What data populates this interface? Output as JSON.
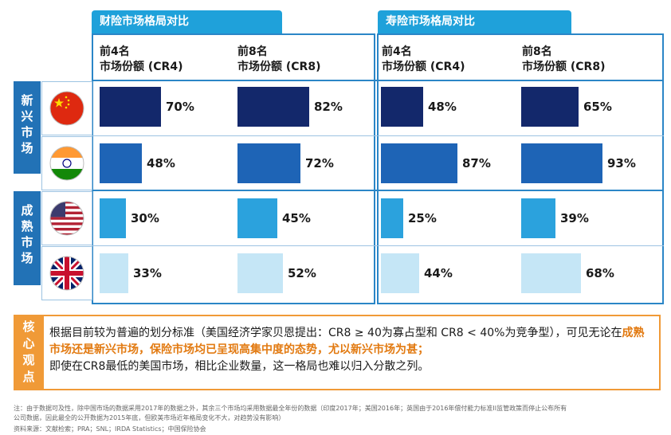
{
  "panels": [
    {
      "title": "财险市场格局对比",
      "cols": [
        "前4名\n市场份额 (CR4)",
        "前8名\n市场份额 (CR8)"
      ]
    },
    {
      "title": "寿险市场格局对比",
      "cols": [
        "前4名\n市场份额 (CR4)",
        "前8名\n市场份额 (CR8)"
      ]
    }
  ],
  "groups": [
    {
      "label": "新兴市场"
    },
    {
      "label": "成熟市场"
    }
  ],
  "flags": [
    "china-flag",
    "india-flag",
    "usa-flag",
    "uk-flag"
  ],
  "colors": {
    "row1": "#13286b",
    "row2": "#1e64b6",
    "row3": "#2ba2dd",
    "row4": "#c5e6f6",
    "accent": "#1fa1da",
    "note": "#f09a37",
    "highlight": "#e27a11"
  },
  "chart_data": {
    "type": "bar",
    "series": [
      {
        "name": "财险 前4名市场份额 (CR4)",
        "values": [
          70,
          48,
          30,
          33
        ]
      },
      {
        "name": "财险 前8名市场份额 (CR8)",
        "values": [
          82,
          72,
          45,
          52
        ]
      },
      {
        "name": "寿险 前4名市场份额 (CR4)",
        "values": [
          48,
          87,
          25,
          44
        ]
      },
      {
        "name": "寿险 前8名市场份额 (CR8)",
        "values": [
          65,
          93,
          39,
          68
        ]
      }
    ],
    "labels": [
      [
        "70%",
        "48%",
        "30%",
        "33%"
      ],
      [
        "82%",
        "72%",
        "45%",
        "52%"
      ],
      [
        "48%",
        "87%",
        "25%",
        "44%"
      ],
      [
        "65%",
        "93%",
        "39%",
        "68%"
      ]
    ]
  },
  "note": {
    "label": "核心观点",
    "text_before": "根据目前较为普遍的划分标准（美国经济学家贝恩提出：CR8 ≥ 40为寡占型和 CR8 < 40%为竞争型），可见无论在",
    "highlight": "成熟市场还是新兴市场，保险市场均已呈现高集中度的态势，尤以新兴市场为甚；",
    "text_after": "即使在CR8最低的美国市场，相比企业数量，这一格局也难以归入分散之列。"
  },
  "footnotes": {
    "line1": "注：由于数据可及性，除中国市场的数据采用2017年的数据之外，其余三个市场均采用数据最全年份的数据（印度2017年；美国2016年；英国由于2016年偿付能力标准II监管政策而停止公布所有",
    "line2": "公司数据，因此最全的公开数据为2015年底，但欧美市场近年格局变化不大，对趋势没有影响）",
    "line3": "资料来源：文献检索；PRA；SNL；IRDA Statistics；中国保险协会"
  }
}
